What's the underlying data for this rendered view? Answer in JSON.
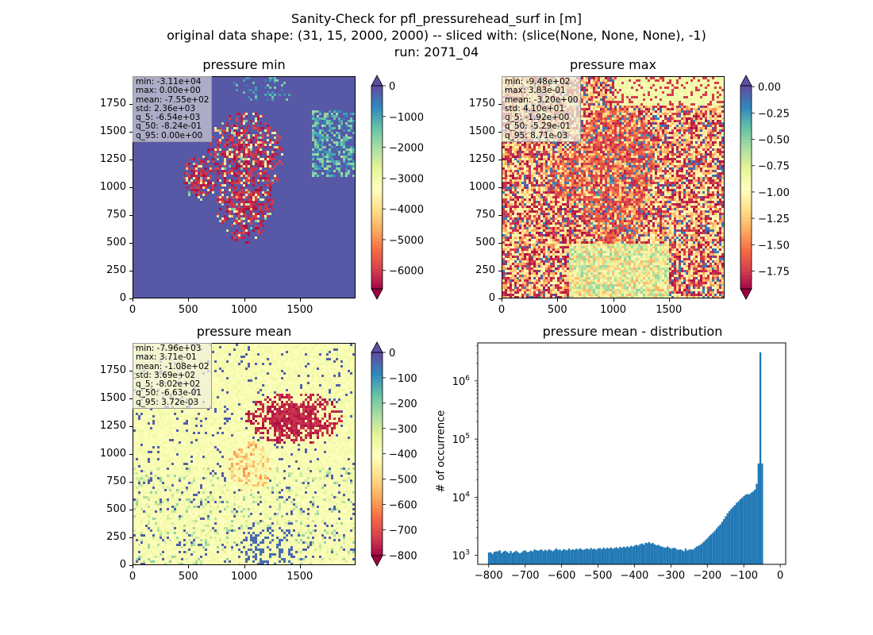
{
  "figure": {
    "title_lines": [
      "Sanity-Check for pfl_pressurehead_surf in [m]",
      "original data shape: (31, 15, 2000, 2000) -- sliced with: (slice(None, None, None), -1)",
      "run: 2071_04"
    ]
  },
  "chart_data": [
    {
      "type": "heatmap",
      "title": "pressure min",
      "colormap": "Spectral",
      "xlim": [
        0,
        2000
      ],
      "ylim": [
        0,
        2000
      ],
      "xticks": [
        "0",
        "500",
        "1000",
        "1500"
      ],
      "yticks": [
        "0",
        "250",
        "500",
        "750",
        "1000",
        "1250",
        "1500",
        "1750"
      ],
      "colorbar_range": [
        -6600,
        0
      ],
      "colorbar_ticks": [
        "0",
        "−1000",
        "−2000",
        "−3000",
        "−4000",
        "−5000",
        "−6000"
      ],
      "colorbar_extend": "both",
      "stats": [
        "min: -3.11e+04",
        "max: 0.00e+00",
        "mean: -7.55e+02",
        "std: 2.36e+03",
        "q_5: -6.54e+03",
        "q_50: -8.24e-01",
        "q_95: 0.00e+00"
      ]
    },
    {
      "type": "heatmap",
      "title": "pressure max",
      "colormap": "Spectral",
      "xlim": [
        0,
        2000
      ],
      "ylim": [
        0,
        2000
      ],
      "xticks": [
        "0",
        "500",
        "1000",
        "1500"
      ],
      "yticks": [
        "0",
        "250",
        "500",
        "750",
        "1000",
        "1250",
        "1500",
        "1750"
      ],
      "colorbar_range": [
        -1.92,
        0.00871
      ],
      "colorbar_ticks": [
        "0.00",
        "−0.25",
        "−0.50",
        "−0.75",
        "−1.00",
        "−1.25",
        "−1.50",
        "−1.75"
      ],
      "colorbar_extend": "both",
      "stats": [
        "min: -9.48e+02",
        "max: 3.83e-01",
        "mean: -3.20e+00",
        "std: 4.10e+01",
        "q_5: -1.92e+00",
        "q_50: -5.29e-01",
        "q_95: 8.71e-03"
      ]
    },
    {
      "type": "heatmap",
      "title": "pressure mean",
      "colormap": "Spectral",
      "xlim": [
        0,
        2000
      ],
      "ylim": [
        0,
        2000
      ],
      "xticks": [
        "0",
        "500",
        "1000",
        "1500"
      ],
      "yticks": [
        "0",
        "250",
        "500",
        "750",
        "1000",
        "1250",
        "1500",
        "1750"
      ],
      "colorbar_range": [
        -802,
        0.00372
      ],
      "colorbar_ticks": [
        "0",
        "−100",
        "−200",
        "−300",
        "−400",
        "−500",
        "−600",
        "−700",
        "−800"
      ],
      "colorbar_extend": "both",
      "stats": [
        "min: -7.96e+03",
        "max: 3.71e-01",
        "mean: -1.08e+02",
        "std: 3.69e+02",
        "q_5: -8.02e+02",
        "q_50: -6.63e-01",
        "q_95: 3.72e-03"
      ]
    },
    {
      "type": "bar",
      "title": "pressure mean - distribution",
      "ylabel": "# of occurrence",
      "yscale": "log",
      "ylim": [
        700,
        4500000
      ],
      "xlim": [
        -830,
        15
      ],
      "xticks": [
        "−800",
        "−700",
        "−600",
        "−500",
        "−400",
        "−300",
        "−200",
        "−100",
        "0"
      ],
      "yticks": [
        {
          "value": 1000,
          "base": "10",
          "exp": "3"
        },
        {
          "value": 10000,
          "base": "10",
          "exp": "4"
        },
        {
          "value": 100000,
          "base": "10",
          "exp": "5"
        },
        {
          "value": 1000000,
          "base": "10",
          "exp": "6"
        }
      ],
      "color": "#1f77b4",
      "bins": {
        "start": -802,
        "width": 5.0,
        "counts": [
          1120,
          1130,
          1060,
          1150,
          1170,
          1180,
          1220,
          1100,
          1160,
          1200,
          1150,
          1090,
          1190,
          1100,
          1150,
          1200,
          1140,
          1080,
          1130,
          1200,
          1220,
          1140,
          1150,
          1210,
          1170,
          1260,
          1230,
          1200,
          1240,
          1260,
          1190,
          1250,
          1200,
          1270,
          1230,
          1180,
          1240,
          1320,
          1240,
          1260,
          1200,
          1280,
          1250,
          1220,
          1310,
          1230,
          1270,
          1240,
          1300,
          1260,
          1320,
          1270,
          1240,
          1290,
          1310,
          1260,
          1340,
          1280,
          1300,
          1250,
          1320,
          1330,
          1280,
          1360,
          1290,
          1350,
          1310,
          1370,
          1300,
          1340,
          1380,
          1320,
          1400,
          1350,
          1410,
          1370,
          1430,
          1380,
          1460,
          1410,
          1480,
          1520,
          1470,
          1560,
          1600,
          1530,
          1650,
          1620,
          1700,
          1590,
          1640,
          1550,
          1480,
          1520,
          1450,
          1410,
          1380,
          1350,
          1420,
          1360,
          1300,
          1330,
          1350,
          1280,
          1240,
          1270,
          1230,
          1180,
          1310,
          1210,
          1260,
          1270,
          1250,
          1330,
          1420,
          1460,
          1520,
          1610,
          1720,
          1850,
          1980,
          2150,
          2300,
          2450,
          2650,
          2900,
          3150,
          3400,
          3750,
          4200,
          4700,
          5300,
          5800,
          6300,
          6800,
          7300,
          8000,
          8500,
          9200,
          9800,
          10500,
          11100,
          11300,
          11200,
          12000,
          12500,
          13500,
          17000,
          38000,
          3100000,
          38000
        ]
      }
    }
  ]
}
